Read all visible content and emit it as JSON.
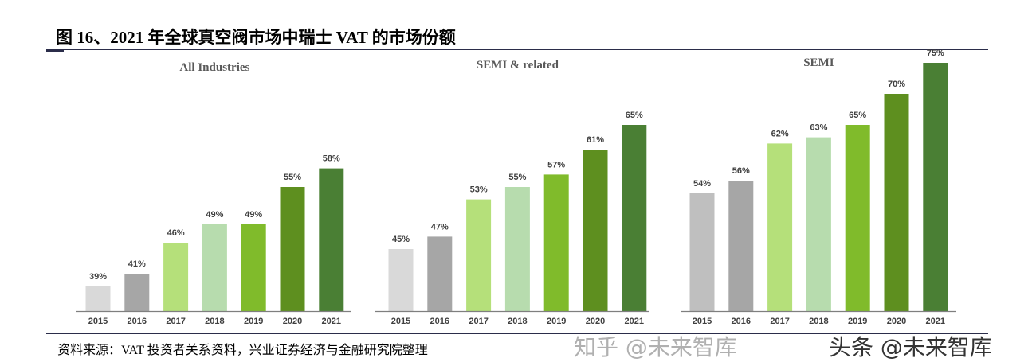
{
  "title": "图 16、2021 年全球真空阀市场中瑞士 VAT 的市场份额",
  "source": "资料来源：VAT 投资者关系资料，兴业证券经济与金融研究院整理",
  "watermarks": [
    "知乎 @未来智库",
    "头条 @未来智库"
  ],
  "colors": {
    "2015": "#d9d9d9",
    "2016": "#a6a6a6",
    "2017": "#b5e07a",
    "2018": "#b7dcae",
    "2019": "#80bb2b",
    "2020": "#5e8f1f",
    "2021": "#4a7f34",
    "2015_semi": "#bfbfbf"
  },
  "chart_data": [
    {
      "type": "bar",
      "title": "All Industries",
      "categories": [
        "2015",
        "2016",
        "2017",
        "2018",
        "2019",
        "2020",
        "2021"
      ],
      "values": [
        39,
        41,
        46,
        49,
        49,
        55,
        58
      ],
      "data_labels": [
        "39%",
        "41%",
        "46%",
        "49%",
        "49%",
        "55%",
        "58%"
      ],
      "ylim": [
        35,
        76
      ],
      "grid": false
    },
    {
      "type": "bar",
      "title": "SEMI & related",
      "categories": [
        "2015",
        "2016",
        "2017",
        "2018",
        "2019",
        "2020",
        "2021"
      ],
      "values": [
        45,
        47,
        53,
        55,
        57,
        61,
        65
      ],
      "data_labels": [
        "45%",
        "47%",
        "53%",
        "55%",
        "57%",
        "61%",
        "65%"
      ],
      "ylim": [
        35,
        76
      ],
      "grid": false
    },
    {
      "type": "bar",
      "title": "SEMI",
      "categories": [
        "2015",
        "2016",
        "2017",
        "2018",
        "2019",
        "2020",
        "2021"
      ],
      "values": [
        54,
        56,
        62,
        63,
        65,
        70,
        75
      ],
      "data_labels": [
        "54%",
        "56%",
        "62%",
        "63%",
        "65%",
        "70%",
        "75%"
      ],
      "ylim": [
        35,
        76
      ],
      "grid": false
    }
  ]
}
